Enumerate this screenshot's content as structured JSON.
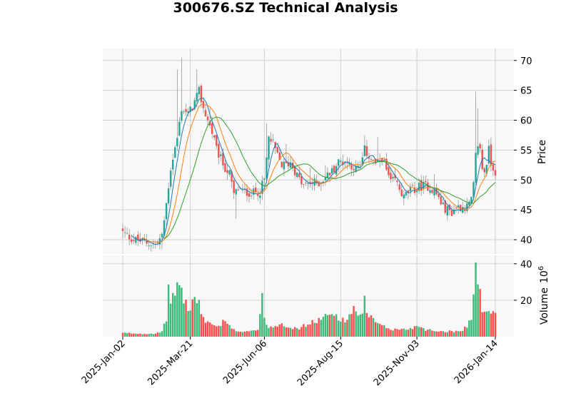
{
  "chart_data": {
    "type": "candlestick",
    "title": "300676.SZ Technical Analysis",
    "x_tick_labels": [
      "2025-Jan-02",
      "2025-Mar-21",
      "2025-Jun-06",
      "2025-Aug-15",
      "2025-Nov-03",
      "2026-Jan-14"
    ],
    "panels": {
      "price": {
        "ylabel": "Price",
        "ylim": [
          37.5,
          72
        ],
        "yticks": [
          40,
          45,
          50,
          55,
          60,
          65,
          70
        ]
      },
      "volume": {
        "ylabel": "Volume  10^6",
        "ylabel_text": "Volume",
        "ylabel_exp": "6",
        "ylim": [
          0,
          45
        ],
        "yticks": [
          20,
          40
        ]
      }
    },
    "grid": true,
    "colors": {
      "up": "#26a69a",
      "down": "#ef5350",
      "volume_up": "#3cba7a",
      "volume_down": "#ff4d4d",
      "ma_short": "#1f77b4",
      "ma_mid": "#ff7f0e",
      "ma_long": "#2ca02c",
      "panel_bg": "#f8f8f8",
      "grid": "#d0d0d0"
    },
    "close_anchors": [
      [
        0,
        41.2
      ],
      [
        5,
        40.0
      ],
      [
        10,
        39.6
      ],
      [
        15,
        39.2
      ],
      [
        18,
        40.5
      ],
      [
        20,
        46
      ],
      [
        22,
        52
      ],
      [
        25,
        57
      ],
      [
        27,
        62
      ],
      [
        30,
        61
      ],
      [
        33,
        63
      ],
      [
        35,
        64.8
      ],
      [
        37,
        62
      ],
      [
        39,
        60
      ],
      [
        41,
        58
      ],
      [
        43,
        55
      ],
      [
        45,
        53.5
      ],
      [
        47,
        52
      ],
      [
        49,
        51
      ],
      [
        51,
        47.5
      ],
      [
        53,
        48.5
      ],
      [
        56,
        48
      ],
      [
        60,
        47.8
      ],
      [
        63,
        48.2
      ],
      [
        65,
        50
      ],
      [
        67,
        57
      ],
      [
        69,
        56
      ],
      [
        71,
        54
      ],
      [
        73,
        52.5
      ],
      [
        75,
        52.5
      ],
      [
        77,
        53
      ],
      [
        79,
        51.5
      ],
      [
        81,
        50
      ],
      [
        83,
        49
      ],
      [
        86,
        49.5
      ],
      [
        90,
        49.5
      ],
      [
        93,
        50.5
      ],
      [
        96,
        51.5
      ],
      [
        99,
        53
      ],
      [
        102,
        53.2
      ],
      [
        105,
        52.5
      ],
      [
        107,
        51.8
      ],
      [
        109,
        52
      ],
      [
        111,
        55
      ],
      [
        113,
        54
      ],
      [
        115,
        53
      ],
      [
        117,
        52.5
      ],
      [
        119,
        54
      ],
      [
        121,
        51.5
      ],
      [
        123,
        49.5
      ],
      [
        125,
        50
      ],
      [
        127,
        48.5
      ],
      [
        129,
        47
      ],
      [
        131,
        48
      ],
      [
        134,
        48.5
      ],
      [
        137,
        49
      ],
      [
        140,
        49
      ],
      [
        143,
        48.2
      ],
      [
        145,
        47
      ],
      [
        147,
        45.5
      ],
      [
        149,
        45
      ],
      [
        151,
        44.6
      ],
      [
        153,
        45.5
      ],
      [
        156,
        45.5
      ],
      [
        158,
        45.5
      ],
      [
        160,
        46.5
      ],
      [
        161,
        49
      ],
      [
        162,
        54
      ],
      [
        163,
        56
      ],
      [
        164,
        55
      ],
      [
        165,
        52
      ],
      [
        166,
        51.5
      ],
      [
        167,
        53
      ],
      [
        168,
        55
      ],
      [
        169,
        53
      ],
      [
        170,
        52
      ],
      [
        171,
        51.5
      ]
    ],
    "volume_anchors": [
      [
        0,
        2.0
      ],
      [
        5,
        1.8
      ],
      [
        10,
        1.6
      ],
      [
        15,
        1.8
      ],
      [
        18,
        2.5
      ],
      [
        20,
        10
      ],
      [
        21,
        25
      ],
      [
        23,
        20
      ],
      [
        25,
        30
      ],
      [
        27,
        25
      ],
      [
        29,
        18
      ],
      [
        31,
        15
      ],
      [
        33,
        22
      ],
      [
        35,
        17
      ],
      [
        37,
        10
      ],
      [
        39,
        8
      ],
      [
        41,
        7
      ],
      [
        43,
        6
      ],
      [
        45,
        5
      ],
      [
        46,
        9
      ],
      [
        48,
        7
      ],
      [
        50,
        4
      ],
      [
        53,
        3
      ],
      [
        56,
        3
      ],
      [
        60,
        3.5
      ],
      [
        62,
        4
      ],
      [
        63,
        12
      ],
      [
        64,
        20
      ],
      [
        65,
        11
      ],
      [
        67,
        5
      ],
      [
        70,
        6
      ],
      [
        73,
        8
      ],
      [
        75,
        6
      ],
      [
        78,
        5
      ],
      [
        80,
        4
      ],
      [
        83,
        6
      ],
      [
        86,
        7
      ],
      [
        89,
        9
      ],
      [
        92,
        10
      ],
      [
        95,
        12
      ],
      [
        98,
        12
      ],
      [
        100,
        10
      ],
      [
        102,
        8
      ],
      [
        104,
        12
      ],
      [
        106,
        16
      ],
      [
        108,
        10
      ],
      [
        110,
        11
      ],
      [
        111,
        26
      ],
      [
        112,
        12
      ],
      [
        114,
        10
      ],
      [
        116,
        8
      ],
      [
        118,
        6
      ],
      [
        121,
        5
      ],
      [
        124,
        4
      ],
      [
        127,
        4
      ],
      [
        130,
        4
      ],
      [
        133,
        5
      ],
      [
        136,
        6
      ],
      [
        139,
        4
      ],
      [
        142,
        3.5
      ],
      [
        145,
        3
      ],
      [
        148,
        3
      ],
      [
        151,
        3
      ],
      [
        154,
        3
      ],
      [
        156,
        4
      ],
      [
        158,
        6
      ],
      [
        160,
        10
      ],
      [
        161,
        22
      ],
      [
        162,
        40
      ],
      [
        163,
        35
      ],
      [
        164,
        22
      ],
      [
        165,
        13
      ],
      [
        166,
        12
      ],
      [
        167,
        15
      ],
      [
        168,
        16
      ],
      [
        169,
        12
      ],
      [
        170,
        13
      ],
      [
        171,
        13.5
      ]
    ],
    "spikes": [
      [
        25,
        68.5
      ],
      [
        27,
        70.5
      ],
      [
        34,
        68.5
      ],
      [
        40,
        62
      ],
      [
        47,
        52
      ],
      [
        52,
        43.5
      ],
      [
        62,
        46.5
      ],
      [
        66,
        59.5
      ],
      [
        75,
        56
      ],
      [
        86,
        52
      ],
      [
        93,
        52.5
      ],
      [
        111,
        57.5
      ],
      [
        117,
        57.2
      ],
      [
        121,
        54.5
      ],
      [
        143,
        51
      ],
      [
        158,
        47
      ],
      [
        162,
        64.8
      ],
      [
        163,
        62
      ],
      [
        12,
        38.3
      ],
      [
        18,
        38.5
      ]
    ],
    "n_bars": 172,
    "ma_windows": [
      5,
      10,
      20
    ],
    "x_tick_indices": [
      0,
      31,
      65,
      100,
      135,
      171
    ]
  }
}
